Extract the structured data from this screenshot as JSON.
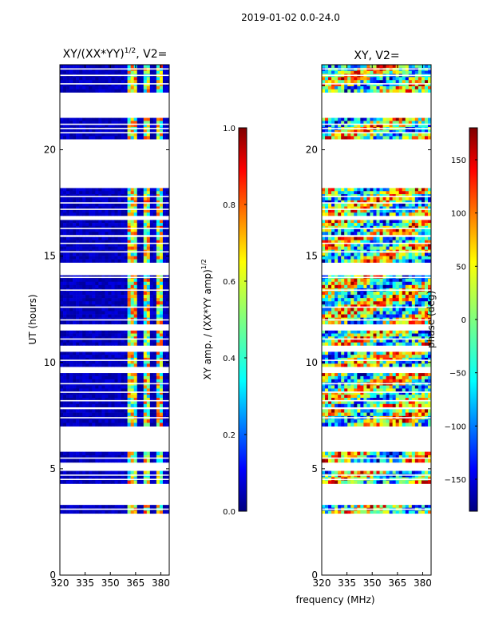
{
  "title": "2019-01-02 0.0-24.0",
  "colors": {
    "background": "#ffffff",
    "frame": "#000000",
    "empty": "#ffffff",
    "jet_stops": [
      "#00007f",
      "#0000ff",
      "#007fff",
      "#00ffff",
      "#7fff7f",
      "#ffff00",
      "#ff7f00",
      "#ff0000",
      "#7f0000"
    ]
  },
  "chart_data": [
    {
      "type": "heatmap",
      "title_base": "XY/(XX*YY)",
      "title_exponent": "1/2",
      "title_suffix": ", V2=",
      "xlabel": "",
      "ylabel": "UT (hours)",
      "xlim": [
        320,
        385
      ],
      "ylim": [
        0,
        24
      ],
      "xticks": [
        320,
        335,
        350,
        365,
        380
      ],
      "xtick_labels": [
        "320",
        "335",
        "350",
        "365",
        "380"
      ],
      "yticks": [
        0,
        5,
        10,
        15,
        20
      ],
      "ytick_labels": [
        "0",
        "5",
        "10",
        "15",
        "20"
      ],
      "colormap": "jet",
      "data_blocks_hours": [
        [
          2.9,
          3.3
        ],
        [
          4.3,
          4.9
        ],
        [
          5.3,
          5.8
        ],
        [
          7.0,
          7.8
        ],
        [
          7.9,
          9.5
        ],
        [
          9.8,
          10.5
        ],
        [
          10.8,
          11.5
        ],
        [
          11.8,
          14.1
        ],
        [
          14.7,
          15.9
        ],
        [
          16.0,
          16.7
        ],
        [
          16.9,
          18.2
        ],
        [
          20.5,
          21.5
        ],
        [
          22.7,
          24.0
        ]
      ],
      "gap_lines_hours": [
        3.1,
        4.5,
        4.7,
        5.5,
        7.4,
        8.2,
        8.6,
        9.0,
        10.1,
        11.1,
        12.0,
        12.6,
        13.4,
        14.0,
        15.2,
        15.6,
        16.3,
        17.2,
        17.5,
        17.8,
        20.8,
        21.0,
        21.2,
        23.1,
        23.5,
        23.8
      ],
      "bright_channel_bands_mhz": [
        [
          361,
          366
        ],
        [
          370,
          374
        ],
        [
          377,
          381
        ]
      ],
      "typical_value": 0.05,
      "bright_value_range": [
        0.3,
        0.85
      ],
      "colorbar": {
        "label_base": "XY amp. / (XX*YY amp)",
        "label_exponent": "1/2",
        "min": 0.0,
        "max": 1.0,
        "ticks": [
          0.0,
          0.2,
          0.4,
          0.6,
          0.8,
          1.0
        ],
        "tick_labels": [
          "0.0",
          "0.2",
          "0.4",
          "0.6",
          "0.8",
          "1.0"
        ]
      }
    },
    {
      "type": "heatmap",
      "title": "XY, V2=",
      "xlabel": "frequency (MHz)",
      "ylabel": "",
      "xlim": [
        320,
        385
      ],
      "ylim": [
        0,
        24
      ],
      "xticks": [
        320,
        335,
        350,
        365,
        380
      ],
      "xtick_labels": [
        "320",
        "335",
        "350",
        "365",
        "380"
      ],
      "yticks": [
        0,
        5,
        10,
        15,
        20
      ],
      "ytick_labels": [
        "0",
        "5",
        "10",
        "15",
        "20"
      ],
      "colormap": "jet",
      "data_blocks_hours": [
        [
          2.9,
          3.3
        ],
        [
          4.3,
          4.9
        ],
        [
          5.3,
          5.8
        ],
        [
          7.0,
          7.8
        ],
        [
          7.9,
          9.5
        ],
        [
          9.8,
          10.5
        ],
        [
          10.8,
          11.5
        ],
        [
          11.8,
          14.1
        ],
        [
          14.7,
          15.9
        ],
        [
          16.0,
          16.7
        ],
        [
          16.9,
          18.2
        ],
        [
          20.5,
          21.5
        ],
        [
          22.7,
          24.0
        ]
      ],
      "gap_lines_hours": [
        3.1,
        4.5,
        4.7,
        5.5,
        7.4,
        8.2,
        8.6,
        9.0,
        10.1,
        11.1,
        12.0,
        12.6,
        13.4,
        14.0,
        15.2,
        15.6,
        16.3,
        17.2,
        17.5,
        17.8,
        20.8,
        21.0,
        21.2,
        23.1,
        23.5,
        23.8
      ],
      "value_range_deg": [
        -180,
        180
      ],
      "colorbar": {
        "label": "phase (deg)",
        "min": -180,
        "max": 180,
        "ticks": [
          -150,
          -100,
          -50,
          0,
          50,
          100,
          150
        ],
        "tick_labels": [
          "−150",
          "−100",
          "−50",
          "0",
          "50",
          "100",
          "150"
        ]
      }
    }
  ]
}
